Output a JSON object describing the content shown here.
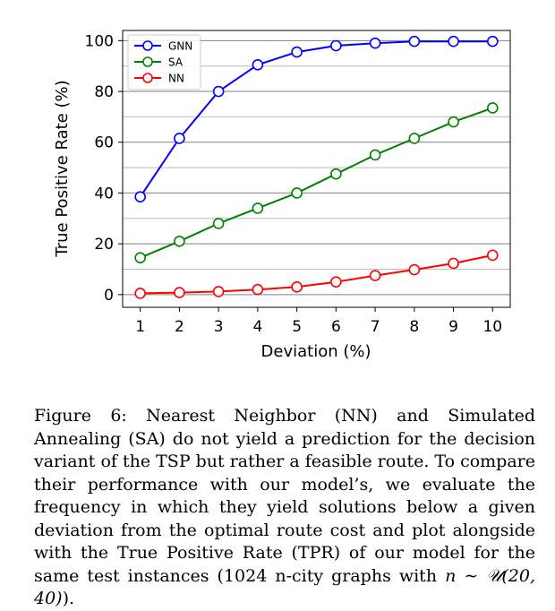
{
  "chart_data": {
    "type": "line",
    "xlabel": "Deviation (%)",
    "ylabel": "True Positive Rate (%)",
    "x": [
      1,
      2,
      3,
      4,
      5,
      6,
      7,
      8,
      9,
      10
    ],
    "xticks": [
      "1",
      "2",
      "3",
      "4",
      "5",
      "6",
      "7",
      "8",
      "9",
      "10"
    ],
    "yticks": [
      "0",
      "20",
      "40",
      "60",
      "80",
      "100"
    ],
    "xlim": [
      0.55,
      10.45
    ],
    "ylim": [
      -5,
      104
    ],
    "grid": "horizontal",
    "legend_position": "top-left",
    "series": [
      {
        "name": "GNN",
        "color": "#0000ff",
        "values": [
          38.5,
          61.5,
          80,
          90.5,
          95.5,
          98,
          99,
          99.7,
          99.7,
          99.7
        ]
      },
      {
        "name": "SA",
        "color": "#008000",
        "values": [
          14.5,
          21,
          28,
          34,
          40,
          47.5,
          55,
          61.5,
          68,
          73.5
        ]
      },
      {
        "name": "NN",
        "color": "#ff0000",
        "values": [
          0.5,
          0.8,
          1.2,
          2,
          3,
          5,
          7.5,
          9.8,
          12.3,
          15.5
        ]
      }
    ]
  },
  "caption": {
    "figure_label": "Figure 6:",
    "text_before_math": "Nearest Neighbor (NN) and Simulated Annealing (SA) do not yield a prediction for the decision variant of the TSP but rather a feasible route. To compare their performance with our model’s, we evaluate the frequency in which they yield solutions below a given deviation from the optimal route cost and plot alongside with the True Positive Rate (TPR) of our model for the same test instances (1024 n-city graphs with ",
    "math": "n ∼ 𝒰(20, 40)",
    "text_after_math": ")."
  }
}
